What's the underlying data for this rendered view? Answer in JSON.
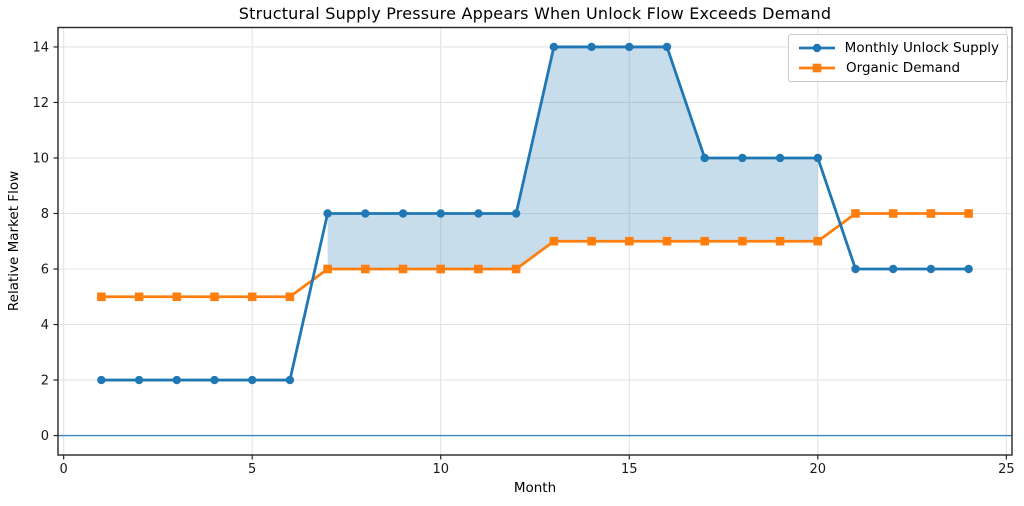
{
  "chart_data": {
    "type": "line",
    "title": "Structural Supply Pressure Appears When Unlock Flow Exceeds Demand",
    "xlabel": "Month",
    "ylabel": "Relative Market Flow",
    "x": [
      1,
      2,
      3,
      4,
      5,
      6,
      7,
      8,
      9,
      10,
      11,
      12,
      13,
      14,
      15,
      16,
      17,
      18,
      19,
      20,
      21,
      22,
      23,
      24
    ],
    "series": [
      {
        "name": "Monthly Unlock Supply",
        "color": "#1f77b4",
        "marker": "circle",
        "values": [
          2,
          2,
          2,
          2,
          2,
          2,
          8,
          8,
          8,
          8,
          8,
          8,
          14,
          14,
          14,
          14,
          10,
          10,
          10,
          10,
          6,
          6,
          6,
          6
        ]
      },
      {
        "name": "Organic Demand",
        "color": "#ff7f0e",
        "marker": "square",
        "values": [
          5,
          5,
          5,
          5,
          5,
          5,
          6,
          6,
          6,
          6,
          6,
          6,
          7,
          7,
          7,
          7,
          7,
          7,
          7,
          7,
          8,
          8,
          8,
          8
        ]
      }
    ],
    "fill_between": {
      "description": "shaded region where supply exceeds demand (months 7-20)",
      "color": "rgba(31,119,180,0.25)"
    },
    "x_ticks": [
      0,
      5,
      10,
      15,
      20,
      25
    ],
    "y_ticks": [
      0,
      2,
      4,
      6,
      8,
      10,
      12,
      14
    ],
    "xlim": [
      -0.15,
      25.15
    ],
    "ylim": [
      -0.7,
      14.7
    ],
    "grid": true,
    "grid_color": "#e3e3e3",
    "spine_color": "#262626",
    "zero_line": true,
    "zero_line_color": "#3d85c0",
    "legend_position": "upper right"
  }
}
